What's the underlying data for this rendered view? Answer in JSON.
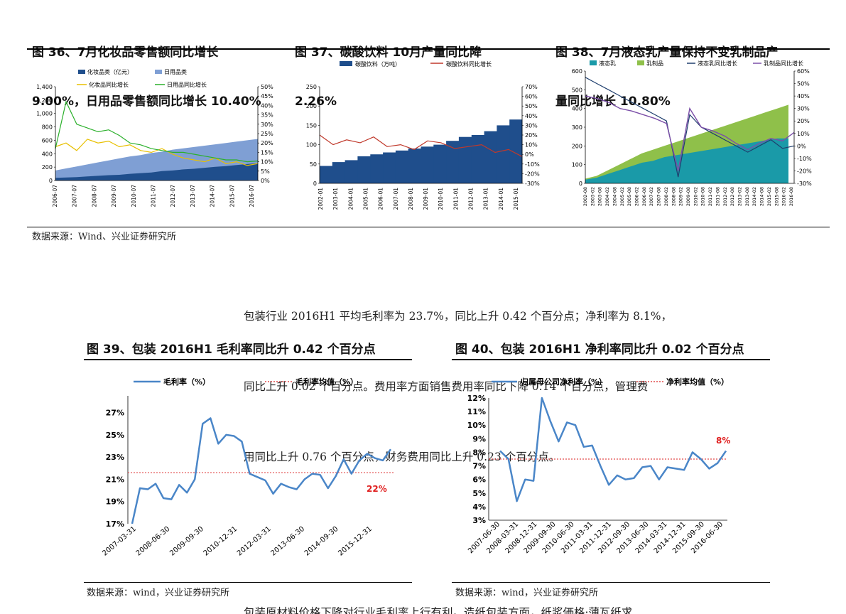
{
  "figures_top": [
    {
      "title_line1": "图 36、7月化妆品零售额同比增长",
      "title_line2": "9.00%，日用品零售额同比增长 10.40%"
    },
    {
      "title_line1": "图 37、碳酸饮料 10月产量同比降",
      "title_line2": "2.26%"
    },
    {
      "title_line1": "图 38、7月液态乳产量保持不变乳制品产",
      "title_line2": "量同比增长 10.80%"
    }
  ],
  "source_top": "数据来源：Wind、兴业证券研究所",
  "paragraph": {
    "line1": "包装行业 2016H1 平均毛利率为 23.7%，同比上升 0.42 个百分点；净利率为 8.1%，",
    "line2": "同比上升 0.02 个百分点。费用率方面销售费用率同比下降 0.14 个百分点，管理费",
    "line3": "用同比上升 0.76 个百分点，财务费用同比上升 0.23 个百分点。"
  },
  "figures_bottom": [
    {
      "title": "图 39、包装 2016H1 毛利率同比升 0.42 个百分点",
      "source": "数据来源：wind，兴业证券研究所"
    },
    {
      "title": "图 40、包装 2016H1 净利率同比升 0.02 个百分点",
      "source": "数据来源：wind，兴业证券研究所"
    }
  ],
  "footer_partial": "包装原材料价格下降对行业毛利率上行有利。造纸包装方面，纸浆価格·薄瓦纸求",
  "chart_data": [
    {
      "id": "fig36",
      "type": "area",
      "title": "7月化妆品零售额同比增长9.00%，日用品零售额同比增长10.40%",
      "legend": [
        "化妆品类（亿元）",
        "日用品类",
        "化妆品同比增长",
        "日用品同比增长"
      ],
      "x_ticks": [
        "2006-07",
        "2007-07",
        "2008-07",
        "2009-07",
        "2010-07",
        "2011-07",
        "2012-07",
        "2013-07",
        "2014-07",
        "2015-07",
        "2016-07"
      ],
      "y_left_ticks": [
        "0",
        "200",
        "400",
        "600",
        "800",
        "1,000",
        "1,200",
        "1,400"
      ],
      "y_right_ticks": [
        "0%",
        "5%",
        "10%",
        "15%",
        "20%",
        "25%",
        "30%",
        "35%",
        "40%",
        "45%",
        "50%"
      ],
      "ylim_left": [
        0,
        1400
      ],
      "ylim_right": [
        0,
        50
      ],
      "series": [
        {
          "name": "化妆品类（亿元）",
          "values": [
            40,
            45,
            50,
            60,
            70,
            80,
            85,
            100,
            110,
            120,
            140,
            150,
            165,
            175,
            190,
            205,
            215,
            230,
            245,
            260
          ]
        },
        {
          "name": "日用品类",
          "values": [
            150,
            180,
            210,
            240,
            270,
            300,
            330,
            360,
            380,
            410,
            430,
            460,
            480,
            500,
            520,
            540,
            560,
            580,
            600,
            620
          ]
        },
        {
          "name": "化妆品同比增长",
          "values": [
            18,
            20,
            16,
            22,
            20,
            21,
            18,
            19,
            16,
            15,
            17,
            14,
            12,
            11,
            10,
            12,
            9,
            10,
            8,
            9
          ]
        },
        {
          "name": "日用品同比增长",
          "values": [
            17,
            42,
            30,
            28,
            26,
            27,
            24,
            20,
            19,
            17,
            16,
            15,
            15,
            14,
            13,
            12,
            11,
            11,
            10,
            10.4
          ]
        }
      ]
    },
    {
      "id": "fig37",
      "type": "bar",
      "title": "碳酸饮料10月产量同比降2.26%",
      "legend": [
        "碳酸饮料（万吨）",
        "碳酸饮料同比增长"
      ],
      "x_ticks": [
        "2002-01",
        "2003-01",
        "2004-01",
        "2005-01",
        "2006-01",
        "2007-01",
        "2008-01",
        "2009-01",
        "2010-01",
        "2011-01",
        "2012-01",
        "2013-01",
        "2014-01",
        "2015-01"
      ],
      "y_left_ticks": [
        "0",
        "50",
        "100",
        "150",
        "200",
        "250"
      ],
      "y_right_ticks": [
        "-30%",
        "-20%",
        "-10%",
        "0%",
        "10%",
        "20%",
        "30%",
        "40%",
        "50%",
        "60%",
        "70%"
      ],
      "ylim_left": [
        0,
        250
      ],
      "ylim_right": [
        -30,
        70
      ],
      "series": [
        {
          "name": "碳酸饮料（万吨）",
          "values": [
            45,
            55,
            60,
            70,
            75,
            80,
            85,
            90,
            95,
            100,
            110,
            120,
            125,
            135,
            150,
            165
          ]
        },
        {
          "name": "碳酸饮料同比增长",
          "values": [
            20,
            10,
            15,
            12,
            18,
            8,
            10,
            5,
            14,
            12,
            6,
            8,
            10,
            2,
            5,
            -2.26
          ]
        }
      ]
    },
    {
      "id": "fig38",
      "type": "area",
      "title": "7月液态乳产量保持不变乳制品产量同比增长10.80%",
      "legend": [
        "液态乳",
        "乳制品",
        "液态乳同比增长",
        "乳制品同比增长"
      ],
      "x_ticks": [
        "2002-08",
        "2003-02",
        "2003-08",
        "2004-02",
        "2004-08",
        "2005-02",
        "2005-08",
        "2006-02",
        "2006-08",
        "2007-02",
        "2007-08",
        "2008-02",
        "2008-08",
        "2009-02",
        "2009-08",
        "2010-02",
        "2010-08",
        "2011-02",
        "2011-08",
        "2012-02",
        "2012-08",
        "2013-02",
        "2013-08",
        "2014-02",
        "2014-08",
        "2015-02",
        "2015-08",
        "2016-02",
        "2016-08"
      ],
      "y_left_ticks": [
        "0",
        "100",
        "200",
        "300",
        "400",
        "500",
        "600"
      ],
      "y_right_ticks": [
        "-30%",
        "-20%",
        "-10%",
        "0%",
        "10%",
        "20%",
        "30%",
        "40%",
        "50%",
        "60%"
      ],
      "ylim_left": [
        0,
        600
      ],
      "ylim_right": [
        -30,
        60
      ],
      "series": [
        {
          "name": "液态乳",
          "values": [
            20,
            30,
            50,
            70,
            90,
            110,
            120,
            140,
            150,
            160,
            170,
            180,
            190,
            200,
            210,
            220,
            230,
            240,
            240
          ]
        },
        {
          "name": "乳制品",
          "values": [
            25,
            40,
            70,
            100,
            130,
            160,
            180,
            200,
            220,
            240,
            260,
            280,
            300,
            320,
            340,
            360,
            380,
            400,
            420
          ]
        },
        {
          "name": "液态乳同比增长",
          "values": [
            55,
            50,
            45,
            40,
            35,
            30,
            25,
            20,
            -25,
            25,
            15,
            10,
            5,
            0,
            -5,
            0,
            5,
            -2,
            0
          ]
        },
        {
          "name": "乳制品同比增长",
          "values": [
            40,
            38,
            35,
            30,
            28,
            25,
            22,
            18,
            -20,
            30,
            15,
            12,
            8,
            2,
            -3,
            2,
            6,
            4,
            10.8
          ]
        }
      ]
    },
    {
      "id": "fig39",
      "type": "line",
      "title": "包装2016H1毛利率同比升0.42个百分点",
      "legend": [
        "毛利率（%）",
        "毛利率均值（%）"
      ],
      "x_ticks": [
        "2007-03-31",
        "2008-06-30",
        "2009-09-30",
        "2010-12-31",
        "2012-03-31",
        "2013-06-30",
        "2014-09-30",
        "2015-12-31"
      ],
      "y_ticks": [
        "17%",
        "19%",
        "21%",
        "23%",
        "25%",
        "27%"
      ],
      "ylim": [
        17,
        28
      ],
      "annotation": "22%",
      "mean": 21.6,
      "series": [
        {
          "name": "毛利率（%）",
          "values": [
            17.0,
            20.2,
            20.1,
            20.6,
            19.3,
            19.2,
            20.5,
            19.8,
            21.0,
            26.0,
            26.5,
            24.2,
            25.0,
            24.9,
            24.4,
            21.5,
            21.2,
            20.9,
            19.7,
            20.6,
            20.3,
            20.1,
            21.0,
            21.5,
            21.4,
            20.2,
            21.3,
            22.8,
            21.5,
            22.7,
            23.3,
            22.9,
            22.7,
            23.7
          ]
        },
        {
          "name": "毛利率均值（%）",
          "values": [
            21.6
          ]
        }
      ]
    },
    {
      "id": "fig40",
      "type": "line",
      "title": "包装2016H1净利率同比升0.02个百分点",
      "legend": [
        "归属母公司净利率（%）",
        "净利率均值（%）"
      ],
      "x_ticks": [
        "2007-06-30",
        "2008-03-31",
        "2008-12-31",
        "2009-09-30",
        "2010-06-30",
        "2011-03-31",
        "2011-12-31",
        "2012-09-30",
        "2013-06-30",
        "2014-03-31",
        "2014-12-31",
        "2015-09-30",
        "2016-06-30"
      ],
      "y_ticks": [
        "3%",
        "4%",
        "5%",
        "6%",
        "7%",
        "8%",
        "9%",
        "10%",
        "11%",
        "12%"
      ],
      "ylim": [
        3,
        12
      ],
      "annotation": "8%",
      "mean": 7.5,
      "series": [
        {
          "name": "归属母公司净利率（%）",
          "values": [
            8.1,
            7.5,
            4.4,
            6.0,
            5.9,
            12.0,
            10.3,
            8.8,
            10.2,
            10.0,
            8.4,
            8.5,
            7.0,
            5.6,
            6.3,
            6.0,
            6.1,
            6.9,
            7.0,
            6.0,
            6.9,
            6.8,
            6.7,
            8.0,
            7.5,
            6.8,
            7.2,
            8.1
          ]
        },
        {
          "name": "净利率均值（%）",
          "values": [
            7.5
          ]
        }
      ]
    }
  ]
}
